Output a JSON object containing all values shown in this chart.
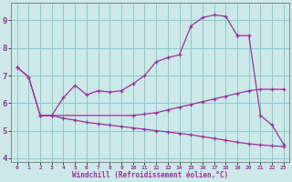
{
  "bg_color": "#cce8e8",
  "line_color": "#993399",
  "grid_color": "#88cccc",
  "xlabel": "Windchill (Refroidissement éolien,°C)",
  "xlim": [
    -0.5,
    23.5
  ],
  "ylim": [
    3.85,
    9.65
  ],
  "yticks": [
    4,
    5,
    6,
    7,
    8,
    9
  ],
  "xticks": [
    0,
    1,
    2,
    3,
    4,
    5,
    6,
    7,
    8,
    9,
    10,
    11,
    12,
    13,
    14,
    15,
    16,
    17,
    18,
    19,
    20,
    21,
    22,
    23
  ],
  "curve1_x": [
    0,
    1,
    2,
    3,
    4,
    5,
    6,
    7,
    8,
    9,
    10,
    11,
    12,
    13,
    14,
    15,
    16,
    17,
    18,
    19
  ],
  "curve1_y": [
    7.3,
    6.95,
    5.55,
    5.55,
    6.2,
    6.65,
    6.3,
    6.45,
    6.4,
    6.45,
    6.7,
    7.0,
    7.5,
    7.65,
    7.75,
    8.8,
    9.1,
    9.2,
    9.15,
    8.45
  ],
  "curve2_x": [
    0,
    1,
    2,
    3,
    10,
    11,
    12,
    13,
    14,
    15,
    16,
    17,
    18,
    19,
    20,
    21,
    22,
    23
  ],
  "curve2_y": [
    7.3,
    6.95,
    5.55,
    5.55,
    5.55,
    5.6,
    5.65,
    5.75,
    5.85,
    5.95,
    6.05,
    6.15,
    6.25,
    6.35,
    6.45,
    6.5,
    6.5,
    6.5
  ],
  "curve3_x": [
    19,
    20,
    21,
    22,
    23
  ],
  "curve3_y": [
    8.45,
    8.45,
    5.55,
    5.2,
    4.5
  ],
  "curve4_x": [
    2,
    3,
    4,
    5,
    6,
    7,
    8,
    9,
    10,
    11,
    12,
    13,
    14,
    15,
    16,
    17,
    18,
    19,
    20,
    21,
    22,
    23
  ],
  "curve4_y": [
    5.55,
    5.55,
    5.45,
    5.38,
    5.3,
    5.25,
    5.2,
    5.15,
    5.1,
    5.05,
    5.0,
    4.95,
    4.9,
    4.85,
    4.78,
    4.72,
    4.65,
    4.58,
    4.52,
    4.48,
    4.45,
    4.42
  ]
}
